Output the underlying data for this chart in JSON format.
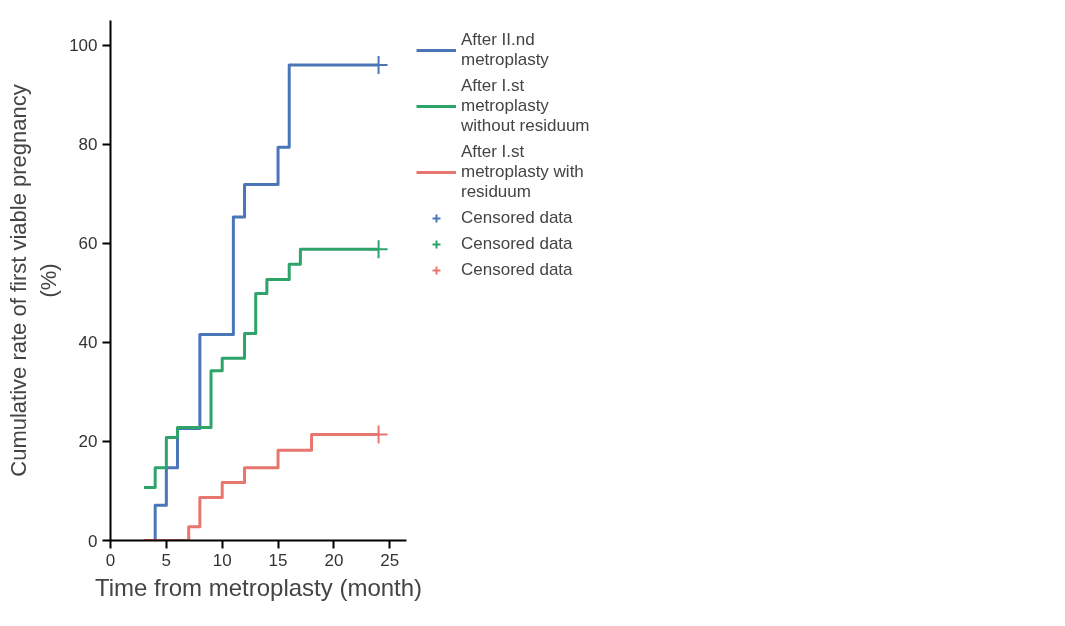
{
  "chart_data": {
    "type": "step",
    "xlabel": "Time from metroplasty (month)",
    "ylabel": "Cumulative rate of first viable pregnancy (%)",
    "xlim": [
      0,
      26.5
    ],
    "ylim": [
      0,
      105
    ],
    "xticks": [
      0,
      5,
      10,
      15,
      20,
      25
    ],
    "yticks": [
      0,
      20,
      40,
      60,
      80,
      100
    ],
    "grid": false,
    "legend": "right",
    "line_style": "solid",
    "series": [
      {
        "name": "After II.nd metroplasty",
        "color": "#4a76b8",
        "x": [
          4,
          4,
          5,
          6,
          8,
          11,
          12,
          15,
          16,
          24
        ],
        "values": [
          0,
          7.1,
          14.7,
          22.6,
          41.6,
          65.3,
          71.9,
          79.4,
          96,
          96
        ]
      },
      {
        "name": "After I.st metroplasty without residuum",
        "color": "#2ea36a",
        "x": [
          3,
          4,
          5,
          6,
          9,
          10,
          12,
          13,
          14,
          16,
          17,
          24
        ],
        "values": [
          10.7,
          14.7,
          20.8,
          22.8,
          34.3,
          36.8,
          41.8,
          49.9,
          52.7,
          55.8,
          58.8,
          58.8
        ]
      },
      {
        "name": "After I.st metroplasty with residuum",
        "color": "#e8766e",
        "x": [
          3,
          7,
          8,
          10,
          12,
          15,
          18,
          24
        ],
        "values": [
          0,
          2.8,
          8.7,
          11.7,
          14.7,
          18.2,
          21.4,
          21.4
        ]
      },
      {
        "name": "Censored data",
        "type": "scatter",
        "marker": "cross",
        "color": "#4a76b8",
        "x": [
          24
        ],
        "values": [
          96
        ]
      },
      {
        "name": "Censored data",
        "type": "scatter",
        "marker": "cross",
        "color": "#2ea36a",
        "x": [
          24
        ],
        "values": [
          58.8
        ]
      },
      {
        "name": "Censored data",
        "type": "scatter",
        "marker": "cross",
        "color": "#e8766e",
        "x": [
          24
        ],
        "values": [
          21.4
        ]
      }
    ]
  }
}
